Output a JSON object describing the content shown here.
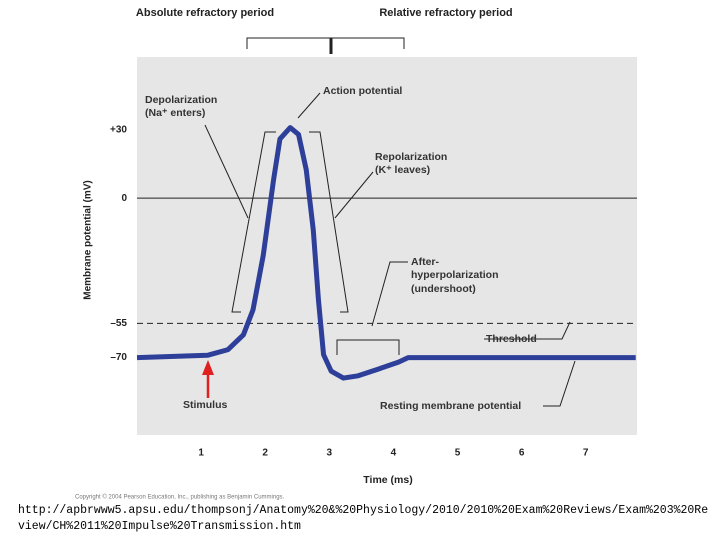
{
  "chart_data": {
    "type": "line",
    "x_label": "Time (ms)",
    "y_label": "Membrane potential (mV)",
    "x": [
      0,
      1.1,
      1.42,
      1.66,
      1.81,
      1.97,
      2.13,
      2.23,
      2.39,
      2.52,
      2.64,
      2.75,
      2.83,
      2.91,
      3.03,
      3.22,
      3.45,
      3.77,
      4.08,
      4.23,
      7.78
    ],
    "series": [
      {
        "color": "#2e3f9a",
        "values": [
          -70,
          -69,
          -66.5,
          -60,
          -49,
          -25,
          8,
          26,
          31,
          28,
          12.5,
          -14,
          -44.5,
          -68.7,
          -76,
          -79,
          -78,
          -75,
          -72,
          -70,
          -70
        ]
      }
    ],
    "xlim": [
      0,
      7.8
    ],
    "ylim": [
      -104,
      62
    ],
    "xticks": [
      1,
      2,
      3,
      4,
      5,
      6,
      7
    ],
    "yticks": [
      {
        "value": 30,
        "label": "+30"
      },
      0,
      {
        "value": -55,
        "label": "–55"
      },
      {
        "value": -70,
        "label": "–70"
      }
    ],
    "reference_lines": [
      {
        "value": 0,
        "style": "solid"
      },
      {
        "value": -55,
        "style": "dashed"
      }
    ],
    "annotations": {
      "absolute": "Absolute refractory period",
      "relative": "Relative refractory period",
      "depolarization": [
        "Depolarization",
        "(Na⁺ enters)"
      ],
      "action_potential": "Action potential",
      "repolarization": [
        "Repolarization",
        "(K⁺ leaves)"
      ],
      "after": [
        "After-",
        "hyperpolarization",
        "(undershoot)"
      ],
      "threshold": "Threshold",
      "stimulus": "Stimulus",
      "resting": "Resting membrane potential"
    },
    "copyright": "Copyright © 2004 Pearson Education, Inc., publishing as Benjamin Cummings.",
    "url": [
      "http://apbrwww5.apsu.edu/thompsonj/Anatomy%20&%20Physiology/2010/2010%20Exam%20Reviews/Exam%203%20Re",
      "view/CH%2011%20Impulse%20Transmission.htm"
    ]
  }
}
